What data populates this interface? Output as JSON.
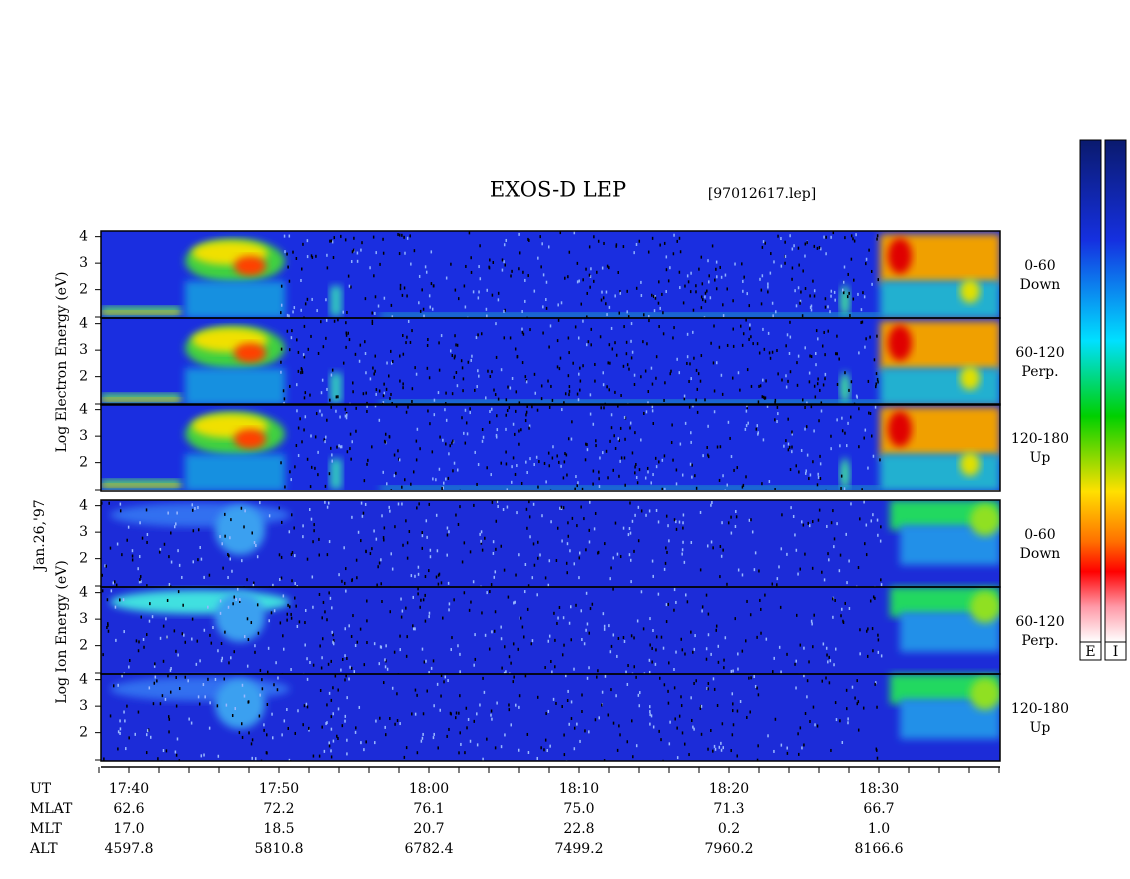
{
  "title": "EXOS-D LEP",
  "file": "[97012617.lep]",
  "date": "Jan.26,'97",
  "electron": {
    "axis_label": "Log Electron Energy (eV)",
    "panels": [
      {
        "angle": "0-60",
        "direction": "Down"
      },
      {
        "angle": "60-120",
        "direction": "Perp."
      },
      {
        "angle": "120-180",
        "direction": "Up"
      }
    ]
  },
  "ion": {
    "axis_label": "Log Ion Energy (eV)",
    "panels": [
      {
        "angle": "0-60",
        "direction": "Down"
      },
      {
        "angle": "60-120",
        "direction": "Perp."
      },
      {
        "angle": "120-180",
        "direction": "Up"
      }
    ]
  },
  "yticks": [
    2,
    3,
    4
  ],
  "time_axis": {
    "label": "UT",
    "ticks": [
      "17:40",
      "17:50",
      "18:00",
      "18:10",
      "18:20",
      "18:30"
    ]
  },
  "ephemeris": [
    {
      "label": "MLAT",
      "values": [
        "62.6",
        "72.2",
        "76.1",
        "75.0",
        "71.3",
        "66.7"
      ]
    },
    {
      "label": "MLT",
      "values": [
        "17.0",
        "18.5",
        "20.7",
        "22.8",
        "0.2",
        "1.0"
      ]
    },
    {
      "label": "ALT",
      "values": [
        "4597.8",
        "5810.8",
        "6782.4",
        "7499.2",
        "7960.2",
        "8166.6"
      ]
    }
  ],
  "colorbar": [
    "E",
    "I"
  ]
}
